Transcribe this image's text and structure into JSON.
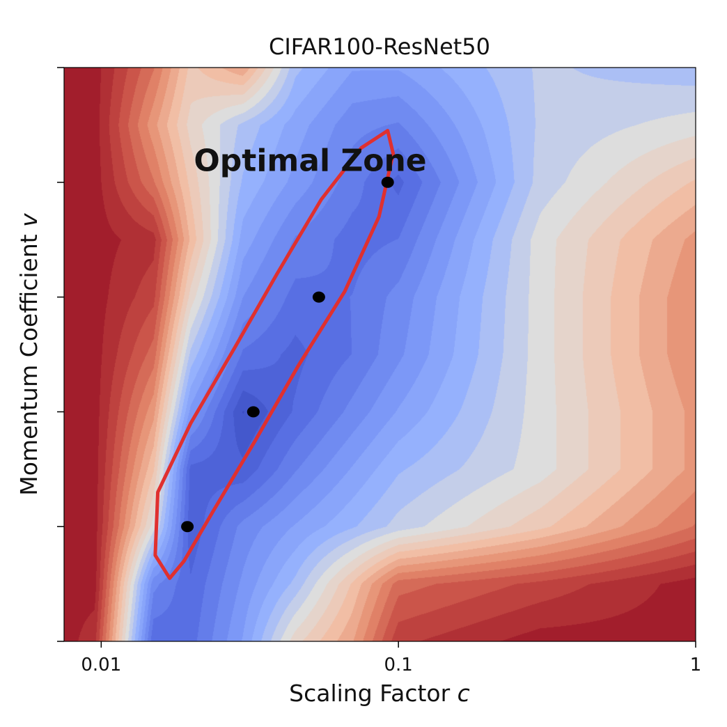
{
  "chart_data": {
    "type": "heatmap",
    "title": "CIFAR100-ResNet50",
    "xlabel": "Scaling Factor c",
    "ylabel": "Momentum Coefficient v",
    "x_scale": "log",
    "xlim": [
      0.0075,
      1
    ],
    "x_ticks": [
      {
        "value": 0.01,
        "label": "0.01"
      },
      {
        "value": 0.1,
        "label": "0.1"
      },
      {
        "value": 1,
        "label": "1"
      }
    ],
    "ylim": [
      0,
      5
    ],
    "y_ticks": [
      0,
      1,
      2,
      3,
      4,
      5
    ],
    "colormap": "coolwarm",
    "grid": false,
    "x_grid": [
      0.0075,
      0.0095,
      0.015,
      0.02,
      0.03,
      0.045,
      0.07,
      0.1,
      0.3,
      1
    ],
    "y_grid": [
      0,
      0.5,
      1,
      1.5,
      2,
      2.5,
      3,
      3.5,
      4,
      4.5,
      5
    ],
    "z": [
      [
        1.0,
        0.95,
        0.12,
        0.14,
        0.3,
        0.55,
        0.7,
        0.92,
        1.0,
        1.0
      ],
      [
        1.0,
        1.0,
        0.22,
        0.12,
        0.26,
        0.4,
        0.62,
        0.82,
        0.9,
        1.0
      ],
      [
        1.0,
        1.0,
        0.5,
        0.08,
        0.22,
        0.3,
        0.38,
        0.45,
        0.6,
        0.8
      ],
      [
        1.0,
        1.0,
        0.62,
        0.1,
        0.08,
        0.2,
        0.3,
        0.38,
        0.5,
        0.72
      ],
      [
        1.0,
        1.0,
        0.72,
        0.28,
        0.02,
        0.12,
        0.22,
        0.3,
        0.5,
        0.72
      ],
      [
        1.0,
        1.0,
        0.82,
        0.42,
        0.15,
        0.1,
        0.16,
        0.24,
        0.5,
        0.75
      ],
      [
        1.0,
        1.0,
        0.9,
        0.55,
        0.25,
        0.14,
        0.16,
        0.22,
        0.5,
        0.75
      ],
      [
        1.0,
        1.0,
        0.95,
        0.65,
        0.32,
        0.2,
        0.14,
        0.16,
        0.5,
        0.72
      ],
      [
        1.0,
        1.0,
        0.8,
        0.6,
        0.38,
        0.28,
        0.18,
        0.1,
        0.45,
        0.62
      ],
      [
        1.0,
        1.0,
        0.72,
        0.55,
        0.42,
        0.32,
        0.22,
        0.2,
        0.44,
        0.5
      ],
      [
        1.0,
        1.0,
        0.8,
        0.6,
        0.7,
        0.4,
        0.3,
        0.3,
        0.44,
        0.4
      ]
    ],
    "optimal_points": [
      {
        "x": 0.0195,
        "y": 1
      },
      {
        "x": 0.0325,
        "y": 2
      },
      {
        "x": 0.054,
        "y": 3
      },
      {
        "x": 0.092,
        "y": 4
      }
    ],
    "annotation": {
      "text": "Optimal Zone",
      "x": 0.0205,
      "y": 4.1,
      "color": "#111111"
    },
    "ellipse": {
      "center": [
        0.0345,
        2.52
      ],
      "color": "#e0302f"
    },
    "ellipse_path": [
      [
        0.017,
        0.55
      ],
      [
        0.0152,
        0.75
      ],
      [
        0.0155,
        1.3
      ],
      [
        0.02,
        1.9
      ],
      [
        0.028,
        2.55
      ],
      [
        0.039,
        3.2
      ],
      [
        0.055,
        3.85
      ],
      [
        0.075,
        4.3
      ],
      [
        0.092,
        4.45
      ],
      [
        0.096,
        4.25
      ],
      [
        0.086,
        3.7
      ],
      [
        0.066,
        3.05
      ],
      [
        0.046,
        2.4
      ],
      [
        0.033,
        1.75
      ],
      [
        0.024,
        1.15
      ],
      [
        0.019,
        0.7
      ]
    ]
  }
}
